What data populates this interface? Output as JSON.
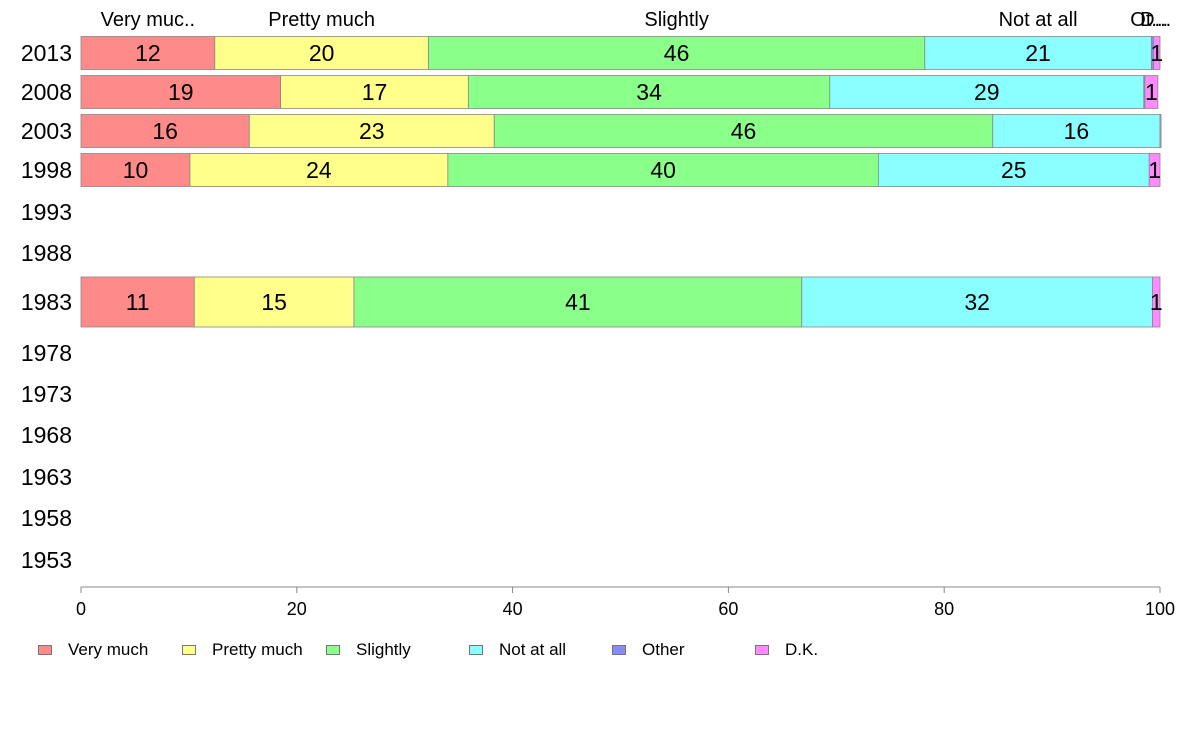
{
  "chart_data": {
    "type": "bar",
    "orientation": "horizontal",
    "stacked": true,
    "categories": [
      "2013",
      "2008",
      "2003",
      "1998",
      "1993",
      "1988",
      "1983",
      "1978",
      "1973",
      "1968",
      "1963",
      "1958",
      "1953"
    ],
    "top_labels": [
      "Very muc..",
      "Pretty much",
      "Slightly",
      "Not at all",
      "Ot...",
      "D..."
    ],
    "series": [
      {
        "name": "Very much",
        "color": "#ff8a8a",
        "values": [
          12.4,
          18.5,
          15.6,
          10.1,
          null,
          null,
          10.5,
          null,
          null,
          null,
          null,
          null,
          null
        ],
        "labels": [
          "12",
          "19",
          "16",
          "10",
          "",
          "",
          "11",
          "",
          "",
          "",
          "",
          "",
          ""
        ]
      },
      {
        "name": "Pretty much",
        "color": "#ffff8a",
        "values": [
          19.8,
          17.4,
          22.7,
          23.9,
          null,
          null,
          14.8,
          null,
          null,
          null,
          null,
          null,
          null
        ],
        "labels": [
          "20",
          "17",
          "23",
          "24",
          "",
          "",
          "15",
          "",
          "",
          "",
          "",
          "",
          ""
        ]
      },
      {
        "name": "Slightly",
        "color": "#8aff8a",
        "values": [
          46.0,
          33.5,
          46.2,
          39.9,
          null,
          null,
          41.5,
          null,
          null,
          null,
          null,
          null,
          null
        ],
        "labels": [
          "46",
          "34",
          "46",
          "40",
          "",
          "",
          "41",
          "",
          "",
          "",
          "",
          "",
          ""
        ]
      },
      {
        "name": "Not at all",
        "color": "#8affff",
        "values": [
          21.0,
          29.1,
          15.5,
          25.1,
          null,
          null,
          32.5,
          null,
          null,
          null,
          null,
          null,
          null
        ],
        "labels": [
          "21",
          "29",
          "16",
          "25",
          "",
          "",
          "32",
          "",
          "",
          "",
          "",
          "",
          ""
        ]
      },
      {
        "name": "Other",
        "color": "#8a8aff",
        "values": [
          0.2,
          0.1,
          0.0,
          0.0,
          null,
          null,
          0.0,
          null,
          null,
          null,
          null,
          null,
          null
        ],
        "labels": [
          "",
          "",
          "",
          "",
          "",
          "",
          "",
          "",
          "",
          "",
          "",
          "",
          ""
        ]
      },
      {
        "name": "D.K.",
        "color": "#ff8aff",
        "values": [
          0.6,
          1.2,
          0.1,
          1.0,
          null,
          null,
          0.7,
          null,
          null,
          null,
          null,
          null,
          null
        ],
        "labels": [
          "1",
          "1",
          "",
          "1",
          "",
          "",
          "1",
          "",
          "",
          "",
          "",
          "",
          ""
        ]
      }
    ],
    "xlim": [
      0,
      100
    ],
    "xticks": [
      "0",
      "20",
      "40",
      "60",
      "80",
      "100"
    ],
    "xlabel": "",
    "ylabel": "",
    "grid": false,
    "legend_position": "bottom"
  }
}
